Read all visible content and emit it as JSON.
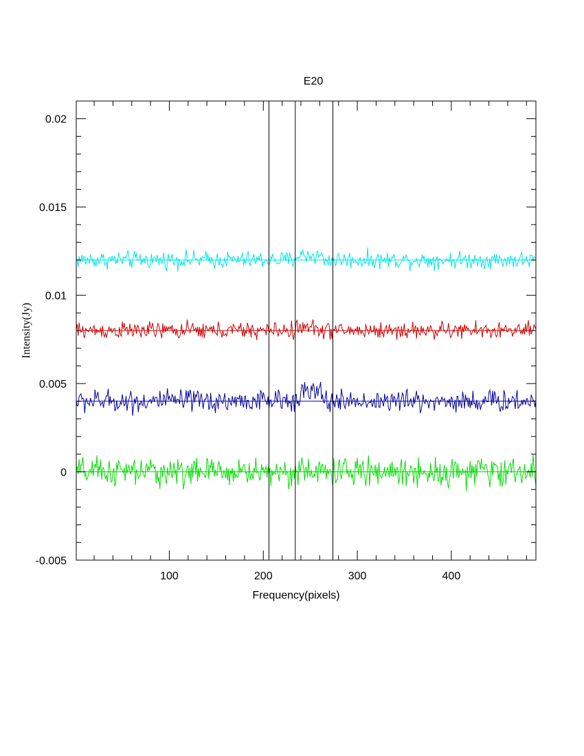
{
  "chart_data": {
    "type": "line",
    "title": "E20",
    "xlabel": "Frequency(pixels)",
    "ylabel": "Intensity(Jy)",
    "xlim": [
      1,
      490
    ],
    "ylim": [
      -0.005,
      0.021
    ],
    "x_ticks": [
      100,
      200,
      300,
      400
    ],
    "x_tick_labels": [
      "100",
      "200",
      "300",
      "400"
    ],
    "y_ticks": [
      -0.005,
      0,
      0.005,
      0.01,
      0.015,
      0.02
    ],
    "y_tick_labels": [
      "-0.005",
      "0",
      "0.005",
      "0.01",
      "0.015",
      "0.02"
    ],
    "grid": false,
    "vertical_lines": [
      206,
      234,
      274
    ],
    "series": [
      {
        "color": "#00e5e5",
        "baseline": 0.012,
        "noise_amplitude": 0.0003,
        "feature_range": [
          234,
          262
        ],
        "feature_offset": 0.00025
      },
      {
        "color": "#cc0000",
        "baseline": 0.008,
        "noise_amplitude": 0.0003,
        "feature_range": [
          234,
          262
        ],
        "feature_offset": 0.00015
      },
      {
        "color": "#000099",
        "baseline": 0.004,
        "noise_amplitude": 0.0004,
        "feature_range": [
          234,
          262
        ],
        "feature_offset": 0.0005
      },
      {
        "color": "#00dd00",
        "baseline": 0.0,
        "noise_amplitude": 0.0005,
        "feature_range": [
          0,
          0
        ],
        "feature_offset": 0.0
      }
    ]
  }
}
